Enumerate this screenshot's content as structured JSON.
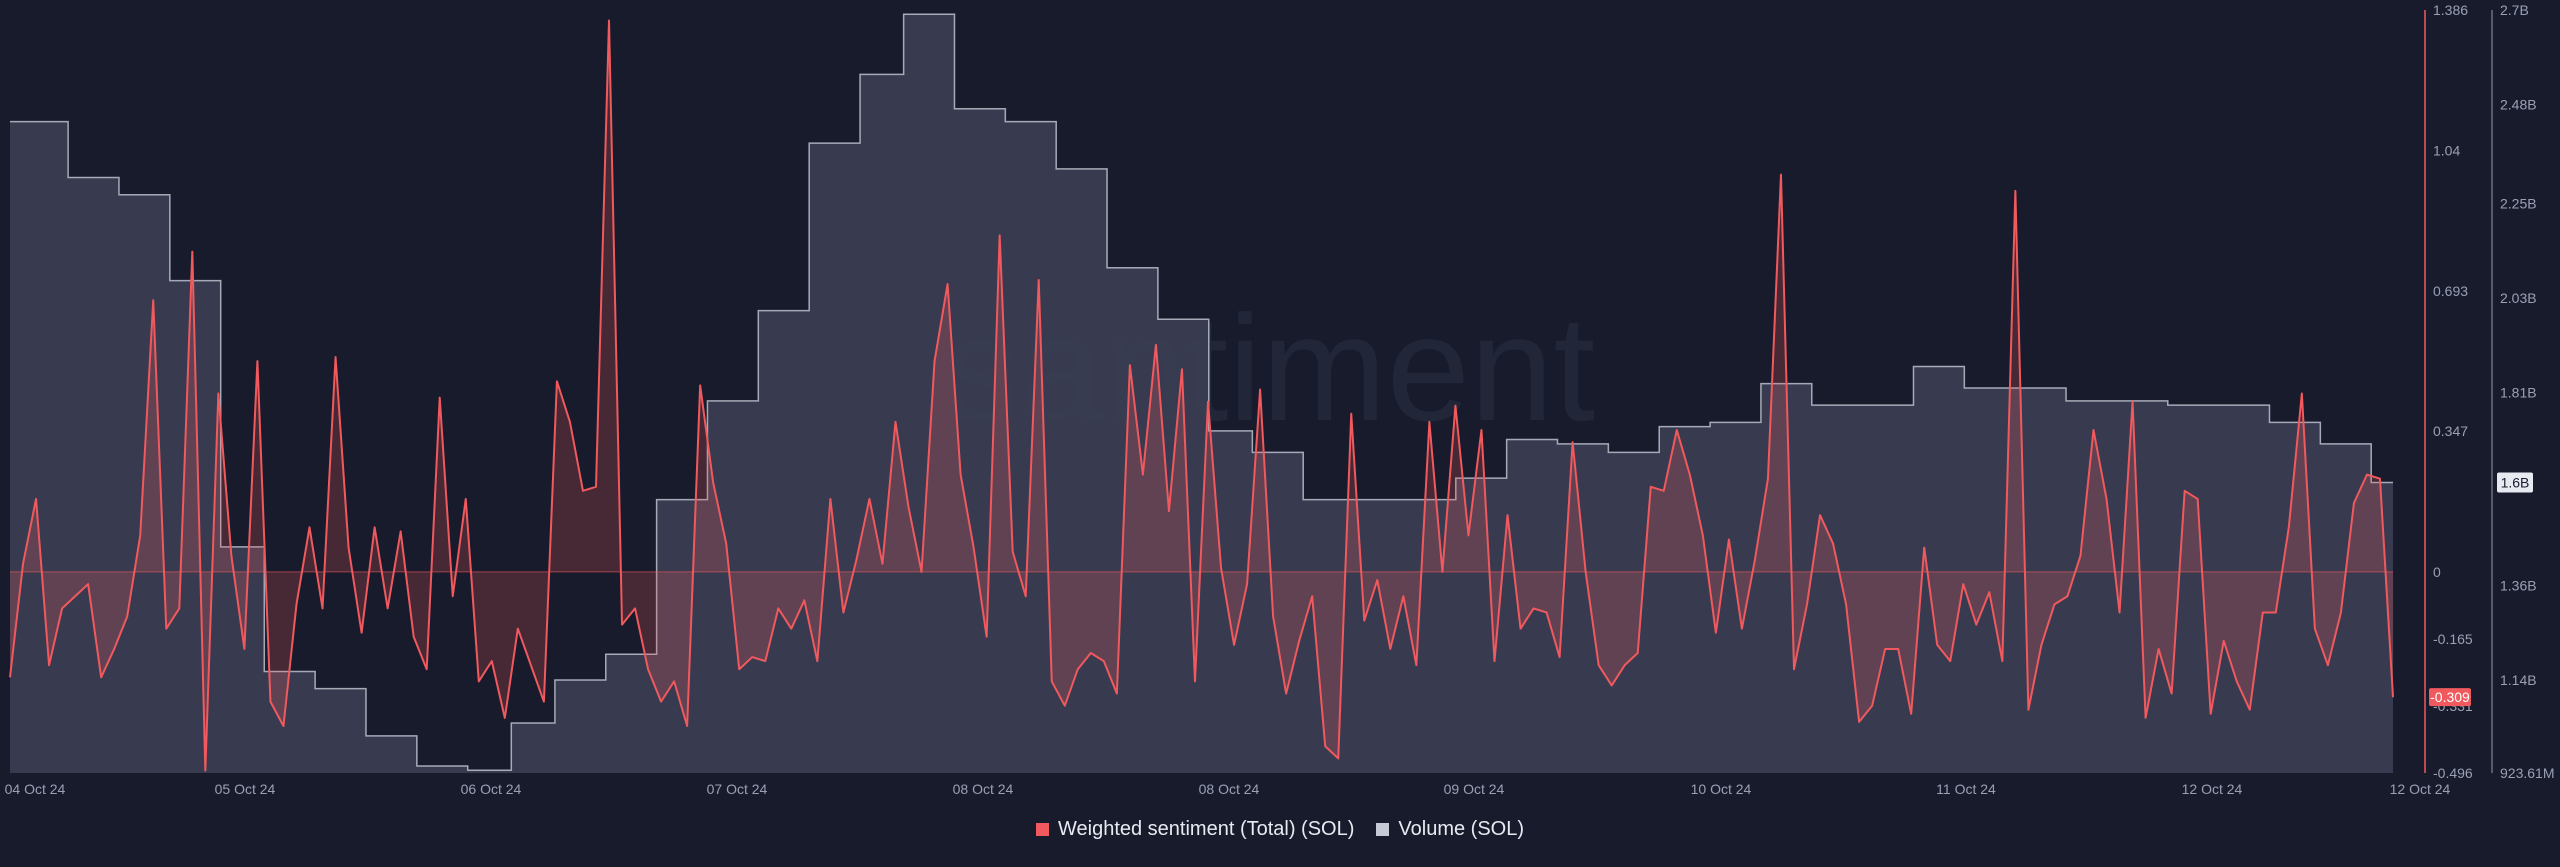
{
  "chart_data": {
    "type": "line",
    "watermark": "santiment",
    "x_tick_labels": [
      "04 Oct 24",
      "05 Oct 24",
      "06 Oct 24",
      "07 Oct 24",
      "08 Oct 24",
      "08 Oct 24",
      "09 Oct 24",
      "10 Oct 24",
      "11 Oct 24",
      "12 Oct 24",
      "12 Oct 24"
    ],
    "series": [
      {
        "name": "Weighted sentiment (Total) (SOL)",
        "color": "#f0595d",
        "style": "line-with-area-to-zero",
        "axis": "left-scale",
        "ylim": [
          -0.496,
          1.386
        ],
        "ticks": [
          "1.386",
          "1.04",
          "0.693",
          "0.347",
          "0",
          "-0.165",
          "-0.331",
          "-0.496"
        ],
        "tick_values": [
          1.386,
          1.04,
          0.693,
          0.347,
          0,
          -0.165,
          -0.331,
          -0.496
        ],
        "current_label": "-0.309",
        "values": [
          -0.26,
          0.02,
          0.18,
          -0.23,
          -0.09,
          -0.06,
          -0.03,
          -0.26,
          -0.19,
          -0.11,
          0.09,
          0.67,
          -0.14,
          -0.09,
          0.79,
          -0.49,
          0.44,
          0.04,
          -0.19,
          0.52,
          -0.32,
          -0.38,
          -0.08,
          0.11,
          -0.09,
          0.53,
          0.06,
          -0.15,
          0.11,
          -0.09,
          0.1,
          -0.16,
          -0.24,
          0.43,
          -0.06,
          0.18,
          -0.27,
          -0.22,
          -0.36,
          -0.14,
          -0.23,
          -0.32,
          0.47,
          0.37,
          0.2,
          0.21,
          1.36,
          -0.13,
          -0.09,
          -0.24,
          -0.32,
          -0.27,
          -0.38,
          0.46,
          0.22,
          0.07,
          -0.24,
          -0.21,
          -0.22,
          -0.09,
          -0.14,
          -0.07,
          -0.22,
          0.18,
          -0.1,
          0.03,
          0.18,
          0.02,
          0.37,
          0.16,
          0.0,
          0.52,
          0.71,
          0.24,
          0.06,
          -0.16,
          0.83,
          0.05,
          -0.06,
          0.72,
          -0.27,
          -0.33,
          -0.24,
          -0.2,
          -0.22,
          -0.3,
          0.51,
          0.24,
          0.56,
          0.15,
          0.5,
          -0.27,
          0.42,
          0.01,
          -0.18,
          -0.03,
          0.45,
          -0.11,
          -0.3,
          -0.17,
          -0.06,
          -0.43,
          -0.46,
          0.39,
          -0.12,
          -0.02,
          -0.19,
          -0.06,
          -0.23,
          0.37,
          0.0,
          0.41,
          0.09,
          0.35,
          -0.22,
          0.14,
          -0.14,
          -0.09,
          -0.1,
          -0.21,
          0.32,
          0.0,
          -0.23,
          -0.28,
          -0.23,
          -0.2,
          0.21,
          0.2,
          0.35,
          0.24,
          0.09,
          -0.15,
          0.08,
          -0.14,
          0.03,
          0.23,
          0.98,
          -0.24,
          -0.08,
          0.14,
          0.07,
          -0.08,
          -0.37,
          -0.33,
          -0.19,
          -0.19,
          -0.35,
          0.06,
          -0.18,
          -0.22,
          -0.03,
          -0.13,
          -0.05,
          -0.22,
          0.94,
          -0.34,
          -0.18,
          -0.08,
          -0.06,
          0.04,
          0.35,
          0.18,
          -0.1,
          0.42,
          -0.36,
          -0.19,
          -0.3,
          0.2,
          0.18,
          -0.35,
          -0.17,
          -0.27,
          -0.34,
          -0.1,
          -0.1,
          0.11,
          0.44,
          -0.14,
          -0.23,
          -0.1,
          0.17,
          0.24,
          0.23,
          -0.309
        ],
        "shaded_bands": [
          {
            "x_start": 0.1855,
            "x_end": 0.2157,
            "color": "#f0595d"
          },
          {
            "x_start": 0.2175,
            "x_end": 0.2597,
            "color": "#f0595d"
          }
        ]
      },
      {
        "name": "Volume (SOL)",
        "color": "#c6cad6",
        "style": "step-area",
        "axis": "right-scale",
        "ylim": [
          923610000,
          2700000000
        ],
        "ticks": [
          "2.7B",
          "2.48B",
          "2.25B",
          "2.03B",
          "1.81B",
          "1.36B",
          "1.14B",
          "923.61M"
        ],
        "tick_values": [
          2700000000,
          2480000000,
          2250000000,
          2030000000,
          1810000000,
          1360000000,
          1140000000,
          923610000
        ],
        "current_label": "1.6B",
        "values": [
          2.44,
          2.44,
          2.44,
          2.44,
          2.44,
          2.44,
          2.44,
          2.44,
          2.31,
          2.31,
          2.31,
          2.31,
          2.31,
          2.31,
          2.31,
          2.27,
          2.27,
          2.27,
          2.27,
          2.27,
          2.27,
          2.27,
          2.07,
          2.07,
          2.07,
          2.07,
          2.07,
          2.07,
          2.07,
          1.45,
          1.45,
          1.45,
          1.45,
          1.45,
          1.45,
          1.16,
          1.16,
          1.16,
          1.16,
          1.16,
          1.16,
          1.16,
          1.12,
          1.12,
          1.12,
          1.12,
          1.12,
          1.12,
          1.12,
          1.01,
          1.01,
          1.01,
          1.01,
          1.01,
          1.01,
          1.01,
          0.94,
          0.94,
          0.94,
          0.94,
          0.94,
          0.94,
          0.94,
          0.93,
          0.93,
          0.93,
          0.93,
          0.93,
          0.93,
          1.04,
          1.04,
          1.04,
          1.04,
          1.04,
          1.04,
          1.14,
          1.14,
          1.14,
          1.14,
          1.14,
          1.14,
          1.14,
          1.2,
          1.2,
          1.2,
          1.2,
          1.2,
          1.2,
          1.2,
          1.56,
          1.56,
          1.56,
          1.56,
          1.56,
          1.56,
          1.56,
          1.79,
          1.79,
          1.79,
          1.79,
          1.79,
          1.79,
          1.79,
          2.0,
          2.0,
          2.0,
          2.0,
          2.0,
          2.0,
          2.0,
          2.39,
          2.39,
          2.39,
          2.39,
          2.39,
          2.39,
          2.39,
          2.55,
          2.55,
          2.55,
          2.55,
          2.55,
          2.55,
          2.69,
          2.69,
          2.69,
          2.69,
          2.69,
          2.69,
          2.69,
          2.47,
          2.47,
          2.47,
          2.47,
          2.47,
          2.47,
          2.47,
          2.44,
          2.44,
          2.44,
          2.44,
          2.44,
          2.44,
          2.44,
          2.33,
          2.33,
          2.33,
          2.33,
          2.33,
          2.33,
          2.33,
          2.1,
          2.1,
          2.1,
          2.1,
          2.1,
          2.1,
          2.1,
          1.98,
          1.98,
          1.98,
          1.98,
          1.98,
          1.98,
          1.98,
          1.72,
          1.72,
          1.72,
          1.72,
          1.72,
          1.72,
          1.67,
          1.67,
          1.67,
          1.67,
          1.67,
          1.67,
          1.67,
          1.56,
          1.56,
          1.56,
          1.56,
          1.56,
          1.56,
          1.56,
          1.56,
          1.56,
          1.56,
          1.56,
          1.56,
          1.56,
          1.56,
          1.56,
          1.56,
          1.56,
          1.56,
          1.56,
          1.56,
          1.56,
          1.61,
          1.61,
          1.61,
          1.61,
          1.61,
          1.61,
          1.61,
          1.7,
          1.7,
          1.7,
          1.7,
          1.7,
          1.7,
          1.7,
          1.69,
          1.69,
          1.69,
          1.69,
          1.69,
          1.69,
          1.69,
          1.67,
          1.67,
          1.67,
          1.67,
          1.67,
          1.67,
          1.67,
          1.73,
          1.73,
          1.73,
          1.73,
          1.73,
          1.73,
          1.73,
          1.74,
          1.74,
          1.74,
          1.74,
          1.74,
          1.74,
          1.74,
          1.83,
          1.83,
          1.83,
          1.83,
          1.83,
          1.83,
          1.83,
          1.78,
          1.78,
          1.78,
          1.78,
          1.78,
          1.78,
          1.78,
          1.78,
          1.78,
          1.78,
          1.78,
          1.78,
          1.78,
          1.78,
          1.87,
          1.87,
          1.87,
          1.87,
          1.87,
          1.87,
          1.87,
          1.82,
          1.82,
          1.82,
          1.82,
          1.82,
          1.82,
          1.82,
          1.82,
          1.82,
          1.82,
          1.82,
          1.82,
          1.82,
          1.82,
          1.79,
          1.79,
          1.79,
          1.79,
          1.79,
          1.79,
          1.79,
          1.79,
          1.79,
          1.79,
          1.79,
          1.79,
          1.79,
          1.79,
          1.78,
          1.78,
          1.78,
          1.78,
          1.78,
          1.78,
          1.78,
          1.78,
          1.78,
          1.78,
          1.78,
          1.78,
          1.78,
          1.78,
          1.74,
          1.74,
          1.74,
          1.74,
          1.74,
          1.74,
          1.74,
          1.69,
          1.69,
          1.69,
          1.69,
          1.69,
          1.69,
          1.69,
          1.6,
          1.6,
          1.6,
          1.6
        ],
        "value_unit": "B"
      }
    ],
    "zero_line": true,
    "grid": false,
    "legend_position": "bottom-center"
  }
}
